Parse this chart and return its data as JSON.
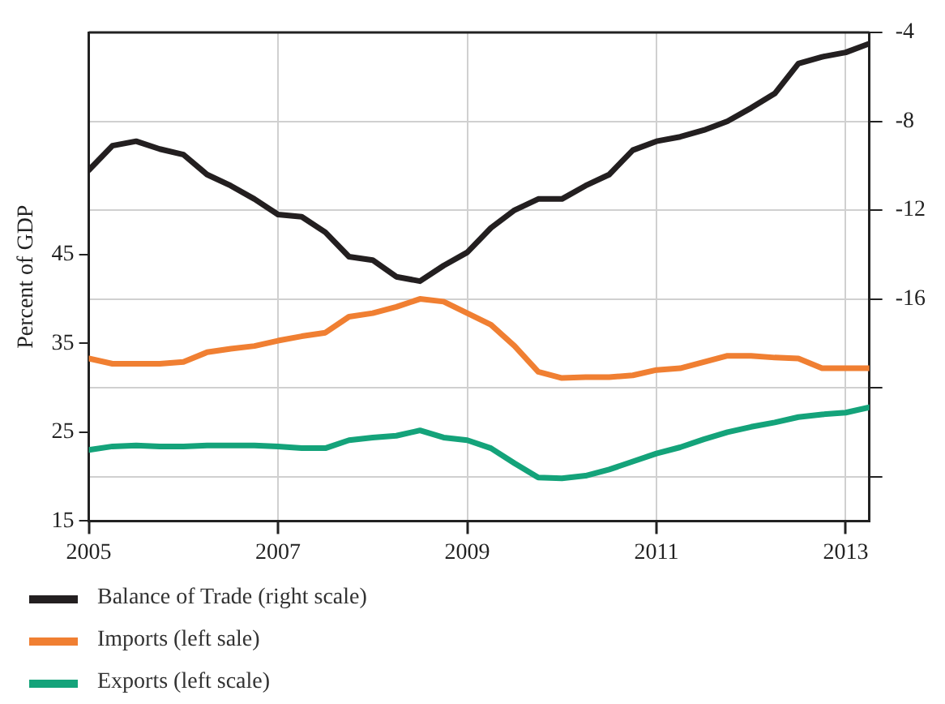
{
  "chart_data": {
    "type": "line",
    "ylabel": "Percent of GDP",
    "x": [
      2005,
      2005.25,
      2005.5,
      2005.75,
      2006,
      2006.25,
      2006.5,
      2006.75,
      2007,
      2007.25,
      2007.5,
      2007.75,
      2008,
      2008.25,
      2008.5,
      2008.75,
      2009,
      2009.25,
      2009.5,
      2009.75,
      2010,
      2010.25,
      2010.5,
      2010.75,
      2011,
      2011.25,
      2011.5,
      2011.75,
      2012,
      2012.25,
      2012.5,
      2012.75,
      2013,
      2013.25
    ],
    "xlim": [
      2005,
      2013.25
    ],
    "xticks": [
      2005,
      2007,
      2009,
      2011,
      2013
    ],
    "ylim": [
      15,
      70
    ],
    "yticks": [
      15,
      25,
      35,
      45
    ],
    "y2lim": [
      -26,
      -4
    ],
    "y2ticks": [
      -4,
      -8,
      -12,
      -16,
      {
        "value": -20,
        "label": null
      },
      {
        "value": -24,
        "label": null
      }
    ],
    "grid": true,
    "legend": "bottom",
    "marker": "none",
    "line_style": "solid",
    "series": [
      {
        "name": "Balance of Trade (right scale)",
        "color": "#231f20",
        "axis": "y2",
        "values": [
          -10.2,
          -9.1,
          -8.9,
          -9.25,
          -9.5,
          -10.4,
          -10.9,
          -11.5,
          -12.2,
          -12.3,
          -13.0,
          -14.1,
          -14.25,
          -15.0,
          -15.2,
          -14.5,
          -13.9,
          -12.8,
          -12.0,
          -11.5,
          -11.5,
          -10.9,
          -10.4,
          -9.3,
          -8.9,
          -8.7,
          -8.4,
          -8.0,
          -7.4,
          -6.75,
          -5.4,
          -5.1,
          -4.9,
          -4.5
        ]
      },
      {
        "name": "Imports (left sale)",
        "color": "#f07f32",
        "values": [
          33.3,
          32.7,
          32.7,
          32.7,
          32.9,
          34.0,
          34.4,
          34.7,
          35.3,
          35.8,
          36.2,
          38.0,
          38.4,
          39.1,
          40.0,
          39.7,
          38.4,
          37.1,
          34.7,
          31.8,
          31.1,
          31.2,
          31.2,
          31.4,
          32.0,
          32.2,
          32.9,
          33.6,
          33.6,
          33.4,
          33.3,
          32.2,
          32.2,
          32.2
        ]
      },
      {
        "name": "Exports (left scale)",
        "color": "#14a37a",
        "values": [
          23.0,
          23.4,
          23.5,
          23.4,
          23.4,
          23.5,
          23.5,
          23.5,
          23.4,
          23.2,
          23.2,
          24.1,
          24.4,
          24.6,
          25.2,
          24.4,
          24.1,
          23.2,
          21.5,
          19.9,
          19.8,
          20.1,
          20.8,
          21.7,
          22.6,
          23.3,
          24.2,
          25.0,
          25.6,
          26.1,
          26.7,
          27.0,
          27.2,
          27.8
        ]
      }
    ]
  }
}
